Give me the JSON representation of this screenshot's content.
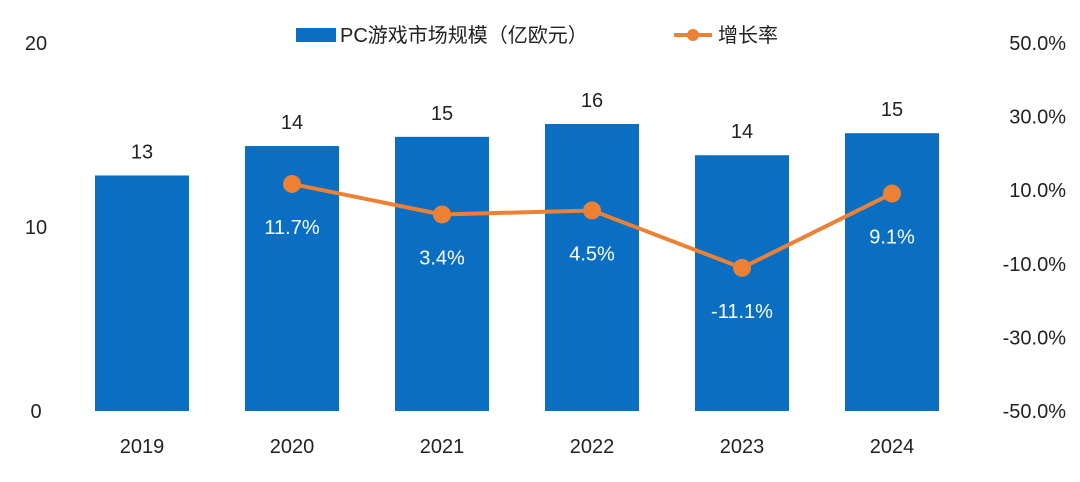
{
  "chart_data": {
    "type": "bar+line",
    "categories": [
      "2019",
      "2020",
      "2021",
      "2022",
      "2023",
      "2024"
    ],
    "series": [
      {
        "name": "PC游戏市场规模（亿欧元）",
        "kind": "bar",
        "axis": "left",
        "values": [
          12.8,
          14.4,
          14.9,
          15.6,
          13.9,
          15.1
        ],
        "labels": [
          "13",
          "14",
          "15",
          "16",
          "14",
          "15"
        ]
      },
      {
        "name": "增长率",
        "kind": "line",
        "axis": "right",
        "values": [
          null,
          11.7,
          3.4,
          4.5,
          -11.1,
          9.1
        ],
        "labels": [
          "",
          "11.7%",
          "3.4%",
          "4.5%",
          "-11.1%",
          "9.1%"
        ]
      }
    ],
    "y_left": {
      "min": 0,
      "max": 20,
      "ticks": [
        "0",
        "10",
        "20"
      ]
    },
    "y_right": {
      "min": -50,
      "max": 50,
      "ticks": [
        "-50.0%",
        "-30.0%",
        "-10.0%",
        "10.0%",
        "30.0%",
        "50.0%"
      ]
    },
    "legend_position": "top-center",
    "grid": false,
    "colors": {
      "bar": "#0a6fc2",
      "line": "#ec8135"
    }
  }
}
